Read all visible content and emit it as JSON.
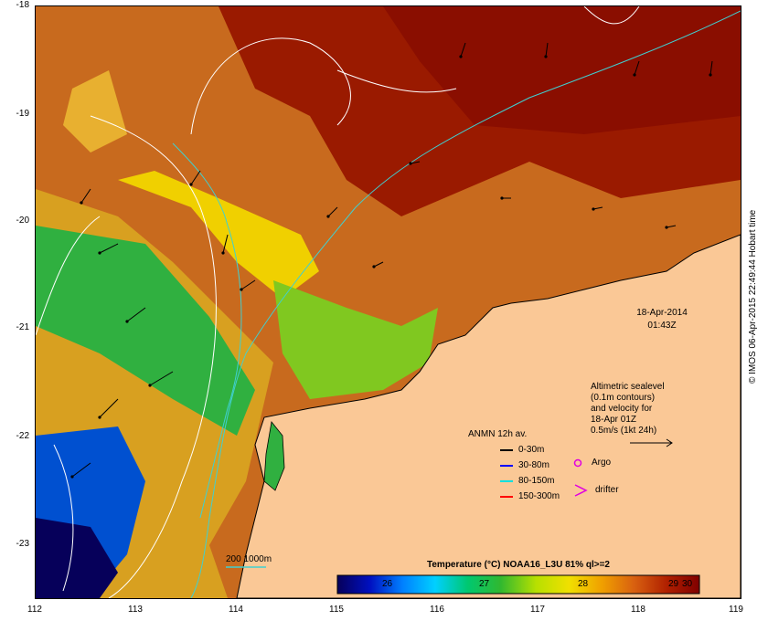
{
  "map": {
    "lon_ticks": [
      "112",
      "113",
      "114",
      "115",
      "116",
      "117",
      "118",
      "119"
    ],
    "lat_ticks": [
      "-18",
      "-19",
      "-20",
      "-21",
      "-22",
      "-23"
    ],
    "date_label": "18-Apr-2014",
    "time_label": "01:43Z",
    "altimetry_note": [
      "Altimetric sealevel",
      "(0.1m contours)",
      "and velocity for",
      "18-Apr 01Z",
      "0.5m/s (1kt 24h)"
    ],
    "anmn_title": "ANMN 12h av.",
    "anmn_legend": [
      {
        "label": "0-30m",
        "color": "#000000"
      },
      {
        "label": "30-80m",
        "color": "#0000ff"
      },
      {
        "label": "80-150m",
        "color": "#00e0e0"
      },
      {
        "label": "150-300m",
        "color": "#ff0000"
      }
    ],
    "argo_label": "Argo",
    "drifter_label": "drifter",
    "isobath_label": "200  1000m",
    "colorbar_title": "Temperature (°C) NOAA16_L3U 81% ql>=2",
    "colorbar_ticks": [
      "26",
      "27",
      "28",
      "29",
      "30"
    ],
    "colorbar_colors": [
      "#06005a",
      "#0010c0",
      "#0080ff",
      "#00d0ff",
      "#00c870",
      "#30b830",
      "#b8e000",
      "#f0e000",
      "#f0a000",
      "#d86010",
      "#b02000",
      "#800000"
    ],
    "watermark": "© IMOS 06-Apr-2015 22:49:44 Hobart time",
    "colors": {
      "land": "#fac896",
      "contour": "#ffffff",
      "isobath": "#40d0d0"
    }
  }
}
